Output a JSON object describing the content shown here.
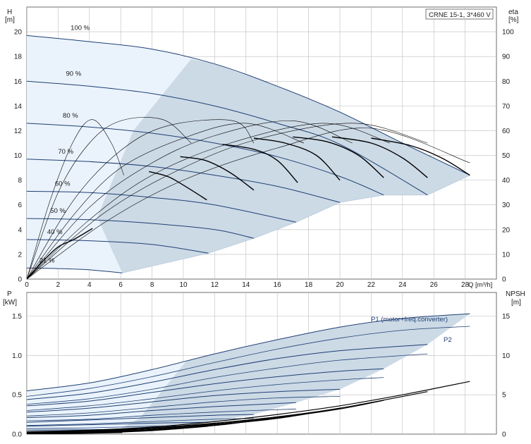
{
  "chart_data": [
    {
      "type": "line",
      "name": "head-efficiency",
      "title": "CRNE 15-1, 3*460 V",
      "ylabel_left": [
        "H",
        "[m]"
      ],
      "ylabel_right": [
        "eta",
        "[%]"
      ],
      "xlabel": "Q [m³/h]",
      "xlim": [
        0,
        30
      ],
      "ylim": [
        0,
        22
      ],
      "y2lim": [
        0,
        110
      ],
      "xticks": [
        0,
        2,
        4,
        6,
        8,
        10,
        12,
        14,
        16,
        18,
        20,
        22,
        24,
        26,
        28
      ],
      "yticks": [
        0,
        2,
        4,
        6,
        8,
        10,
        12,
        14,
        16,
        18,
        20
      ],
      "y2ticks": [
        0,
        10,
        20,
        30,
        40,
        50,
        60,
        70,
        80,
        90,
        100
      ],
      "grid": true,
      "speed_labels": [
        "100 %",
        "90 %",
        "80 %",
        "70 %",
        "60 %",
        "50 %",
        "40 %",
        "21 %"
      ],
      "head_curves": [
        {
          "speed": 100,
          "x": [
            0,
            4,
            8,
            12,
            16,
            20,
            24,
            28.3
          ],
          "y": [
            19.7,
            19.2,
            18.6,
            17.4,
            15.6,
            13.5,
            11.0,
            8.4
          ]
        },
        {
          "speed": 90,
          "x": [
            0,
            4,
            8,
            12,
            16,
            20,
            25.6
          ],
          "y": [
            16.0,
            15.6,
            15.0,
            14.0,
            12.6,
            10.9,
            6.8
          ]
        },
        {
          "speed": 80,
          "x": [
            0,
            4,
            8,
            12,
            16,
            20,
            22.8
          ],
          "y": [
            12.6,
            12.3,
            11.8,
            11.0,
            9.9,
            8.3,
            6.8
          ]
        },
        {
          "speed": 70,
          "x": [
            0,
            4,
            8,
            12,
            16,
            20
          ],
          "y": [
            9.7,
            9.5,
            9.1,
            8.4,
            7.5,
            6.2
          ]
        },
        {
          "speed": 60,
          "x": [
            0,
            4,
            8,
            12,
            17.2
          ],
          "y": [
            7.1,
            7.0,
            6.6,
            6.0,
            4.6
          ]
        },
        {
          "speed": 50,
          "x": [
            0,
            4,
            8,
            12,
            14.5
          ],
          "y": [
            4.9,
            4.8,
            4.5,
            4.0,
            3.3
          ]
        },
        {
          "speed": 40,
          "x": [
            0,
            4,
            8,
            11.6
          ],
          "y": [
            3.2,
            3.1,
            2.8,
            2.1
          ]
        },
        {
          "speed": 21,
          "x": [
            0,
            2,
            4,
            6.1
          ],
          "y": [
            0.9,
            0.85,
            0.75,
            0.5
          ]
        }
      ],
      "efficiency_curves": [
        {
          "x": [
            0,
            1.5,
            3,
            4.2,
            5.4,
            6.2
          ],
          "y": [
            0,
            32,
            56,
            64.5,
            55,
            42
          ]
        },
        {
          "x": [
            0,
            2,
            4,
            6,
            8.7,
            10.5
          ],
          "y": [
            0,
            35,
            55,
            64,
            64.5,
            55
          ]
        },
        {
          "x": [
            0,
            3,
            6,
            9,
            13.2,
            14.5
          ],
          "y": [
            0,
            32,
            52,
            62,
            64,
            55
          ]
        },
        {
          "x": [
            0,
            3,
            6,
            10,
            14,
            17.7
          ],
          "y": [
            0,
            26,
            45,
            57,
            63,
            55
          ]
        },
        {
          "x": [
            0,
            4,
            8,
            12,
            17,
            20.8
          ],
          "y": [
            0,
            29,
            47,
            58,
            64,
            55
          ]
        },
        {
          "x": [
            0,
            4,
            8,
            13,
            19,
            23.2
          ],
          "y": [
            0,
            24,
            42,
            55,
            63,
            55
          ]
        },
        {
          "x": [
            0,
            5,
            10,
            15,
            21,
            25.6
          ],
          "y": [
            0,
            27,
            45,
            57,
            63,
            55
          ]
        },
        {
          "x": [
            0,
            5,
            10,
            16,
            22,
            28.3
          ],
          "y": [
            0,
            23,
            40,
            53,
            61,
            47
          ]
        }
      ],
      "eta_at_op": [
        {
          "x": [
            0,
            1,
            2,
            3,
            4.2
          ],
          "y": [
            0,
            7,
            13,
            16,
            20.5
          ]
        },
        {
          "x": [
            7.8,
            9,
            10,
            11.5
          ],
          "y": [
            43.5,
            41.5,
            38,
            32
          ]
        },
        {
          "x": [
            9.8,
            11.4,
            13,
            14.5
          ],
          "y": [
            49.5,
            48,
            43,
            36
          ]
        },
        {
          "x": [
            12.5,
            14.5,
            16,
            17.3
          ],
          "y": [
            54.5,
            52.5,
            48,
            39
          ]
        },
        {
          "x": [
            14.5,
            16.5,
            18.5,
            20.0
          ],
          "y": [
            57,
            55,
            50,
            40
          ]
        },
        {
          "x": [
            17.0,
            19.2,
            21.2,
            22.8
          ],
          "y": [
            57.5,
            55.5,
            50,
            41
          ]
        },
        {
          "x": [
            19.5,
            22,
            24,
            25.6
          ],
          "y": [
            57.5,
            55,
            49,
            41
          ]
        },
        {
          "x": [
            22.0,
            24.5,
            26.5,
            28.3
          ],
          "y": [
            57,
            54,
            49,
            42
          ]
        }
      ]
    },
    {
      "type": "line",
      "name": "power-npsh",
      "ylabel_left": [
        "P",
        "[kW]"
      ],
      "ylabel_right": [
        "NPSH",
        "[m]"
      ],
      "xlim": [
        0,
        30
      ],
      "ylim": [
        0,
        1.8
      ],
      "y2lim": [
        0,
        18
      ],
      "yticks": [
        "0.0",
        "0.5",
        "1.0",
        "1.5"
      ],
      "y2ticks": [
        0,
        5,
        10,
        15
      ],
      "grid": true,
      "series_labels": [
        "P1 (motor+freq.converter)",
        "P2"
      ],
      "p1_curves": [
        {
          "x": [
            0,
            4,
            8,
            12,
            16,
            20,
            24,
            28.3
          ],
          "y": [
            0.55,
            0.65,
            0.82,
            1.02,
            1.2,
            1.36,
            1.47,
            1.53
          ]
        },
        {
          "x": [
            0,
            4,
            8,
            12,
            16,
            20,
            25.6
          ],
          "y": [
            0.44,
            0.52,
            0.66,
            0.82,
            0.96,
            1.06,
            1.14
          ]
        },
        {
          "x": [
            0,
            4,
            8,
            12,
            16,
            20,
            22.8
          ],
          "y": [
            0.36,
            0.42,
            0.53,
            0.64,
            0.73,
            0.8,
            0.83
          ]
        },
        {
          "x": [
            0,
            4,
            8,
            12,
            16,
            20
          ],
          "y": [
            0.28,
            0.33,
            0.41,
            0.49,
            0.54,
            0.57
          ]
        },
        {
          "x": [
            0,
            4,
            8,
            12,
            17.2
          ],
          "y": [
            0.21,
            0.24,
            0.3,
            0.35,
            0.4
          ]
        },
        {
          "x": [
            0,
            4,
            8,
            12,
            14.5
          ],
          "y": [
            0.15,
            0.18,
            0.21,
            0.24,
            0.25
          ]
        },
        {
          "x": [
            0,
            4,
            8,
            11.6
          ],
          "y": [
            0.1,
            0.12,
            0.14,
            0.15
          ]
        },
        {
          "x": [
            0,
            3,
            6.1
          ],
          "y": [
            0.05,
            0.055,
            0.06
          ]
        }
      ],
      "p2_curves": [
        {
          "x": [
            0,
            4,
            8,
            12,
            16,
            20,
            24,
            28.3
          ],
          "y": [
            0.48,
            0.58,
            0.73,
            0.91,
            1.08,
            1.22,
            1.32,
            1.37
          ]
        },
        {
          "x": [
            0,
            4,
            8,
            12,
            16,
            20,
            25.6
          ],
          "y": [
            0.38,
            0.45,
            0.57,
            0.72,
            0.84,
            0.94,
            1.02
          ]
        },
        {
          "x": [
            0,
            4,
            8,
            12,
            16,
            20,
            22.8
          ],
          "y": [
            0.3,
            0.36,
            0.45,
            0.55,
            0.63,
            0.69,
            0.72
          ]
        },
        {
          "x": [
            0,
            4,
            8,
            12,
            16,
            20
          ],
          "y": [
            0.23,
            0.27,
            0.34,
            0.41,
            0.46,
            0.48
          ]
        },
        {
          "x": [
            0,
            4,
            8,
            12,
            17.2
          ],
          "y": [
            0.17,
            0.19,
            0.24,
            0.28,
            0.32
          ]
        },
        {
          "x": [
            0,
            4,
            8,
            12,
            14.5
          ],
          "y": [
            0.11,
            0.13,
            0.16,
            0.19,
            0.2
          ]
        },
        {
          "x": [
            0,
            4,
            8,
            11.6
          ],
          "y": [
            0.07,
            0.08,
            0.1,
            0.11
          ]
        },
        {
          "x": [
            0,
            3,
            6.1
          ],
          "y": [
            0.03,
            0.035,
            0.04
          ]
        }
      ],
      "npsh_curves": [
        {
          "x": [
            0,
            4,
            8,
            12,
            16,
            20,
            24,
            28.3
          ],
          "y": [
            0.3,
            0.5,
            0.9,
            1.6,
            2.5,
            3.6,
            5.0,
            6.7
          ]
        },
        {
          "x": [
            0,
            4,
            8,
            12,
            16,
            20,
            25.6
          ],
          "y": [
            0.2,
            0.4,
            0.8,
            1.4,
            2.2,
            3.3,
            5.4
          ]
        },
        {
          "x": [
            0,
            4,
            8,
            12,
            16,
            20,
            22.8
          ],
          "y": [
            0.15,
            0.35,
            0.7,
            1.3,
            2.1,
            3.2,
            4.3
          ]
        },
        {
          "x": [
            0,
            4,
            8,
            12,
            16,
            20
          ],
          "y": [
            0.1,
            0.3,
            0.6,
            1.2,
            2.0,
            3.3
          ]
        },
        {
          "x": [
            0,
            4,
            8,
            12,
            17.2
          ],
          "y": [
            0.1,
            0.25,
            0.55,
            1.1,
            2.4
          ]
        },
        {
          "x": [
            0,
            4,
            8,
            12,
            14.5
          ],
          "y": [
            0.05,
            0.2,
            0.5,
            1.1,
            1.7
          ]
        },
        {
          "x": [
            0,
            4,
            8,
            11.6
          ],
          "y": [
            0.05,
            0.15,
            0.45,
            1.0
          ]
        },
        {
          "x": [
            0,
            3,
            6.1
          ],
          "y": [
            0.02,
            0.08,
            0.2
          ]
        }
      ]
    }
  ],
  "colors": {
    "head_line": "#1f3f73",
    "eta_line": "#000000",
    "region_dark": "#ccdae6",
    "region_light": "#eaf3fc",
    "grid": "#bdbdbd",
    "frame": "#6e6e6e",
    "text": "#1a1a1a",
    "label_blue": "#1f3f73"
  }
}
